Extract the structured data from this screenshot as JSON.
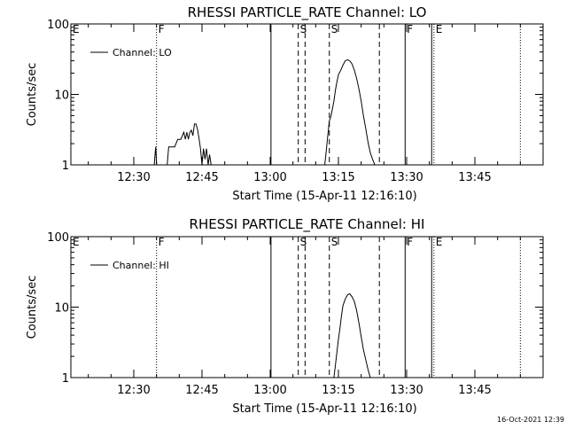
{
  "chart_data": [
    {
      "type": "line",
      "title": "RHESSI PARTICLE_RATE Channel: LO",
      "ylabel": "Counts/sec",
      "xlabel": "Start Time (15-Apr-11 12:16:10)",
      "yscale": "log",
      "ylim": [
        1,
        100
      ],
      "yticks": [
        "1",
        "10",
        "100"
      ],
      "xlim": [
        "12:16:10",
        "14:00:00"
      ],
      "xticks": [
        "12:30",
        "12:45",
        "13:00",
        "13:15",
        "13:30",
        "13:45"
      ],
      "legend": {
        "placement": "top-left",
        "entries": [
          "Channel: LO"
        ]
      },
      "markers": [
        {
          "label": "E",
          "time": "12:16:10",
          "style": "none"
        },
        {
          "label": "F",
          "time": "12:35:00",
          "style": "dotted"
        },
        {
          "label": "",
          "time": "13:00:10",
          "style": "solid"
        },
        {
          "label": "S",
          "time": "13:06:10",
          "style": "dashed"
        },
        {
          "label": "",
          "time": "13:07:40",
          "style": "dashed"
        },
        {
          "label": "S",
          "time": "13:13:00",
          "style": "dashed"
        },
        {
          "label": "",
          "time": "13:24:00",
          "style": "dashed"
        },
        {
          "label": "F",
          "time": "13:29:40",
          "style": "solid"
        },
        {
          "label": "",
          "time": "13:35:30",
          "style": "solid"
        },
        {
          "label": "E",
          "time": "13:36:00",
          "style": "dotted"
        },
        {
          "label": "",
          "time": "13:55:00",
          "style": "dotted"
        }
      ],
      "series": [
        {
          "segments": [
            {
              "x": [
                "12:34:30",
                "12:34:40",
                "12:34:50",
                "12:35:00"
              ],
              "y": [
                1.0,
                1.4,
                1.8,
                1.0
              ]
            },
            {
              "x": [
                "12:37:20",
                "12:37:40",
                "12:38:00",
                "12:38:20",
                "12:39:00",
                "12:39:40",
                "12:40:20",
                "12:41:00",
                "12:41:20",
                "12:41:40",
                "12:42:00",
                "12:42:20",
                "12:42:40",
                "12:43:00",
                "12:43:20",
                "12:43:40",
                "12:44:00",
                "12:44:20",
                "12:44:40",
                "12:45:00",
                "12:45:20",
                "12:45:40",
                "12:46:00",
                "12:46:20",
                "12:46:40",
                "12:47:00"
              ],
              "y": [
                1.0,
                1.8,
                1.8,
                1.8,
                1.8,
                2.3,
                2.3,
                2.9,
                2.3,
                2.9,
                2.3,
                2.9,
                3.1,
                2.6,
                3.8,
                3.8,
                3.2,
                2.4,
                1.7,
                1.0,
                1.7,
                1.2,
                1.7,
                1.0,
                1.4,
                1.0
              ]
            },
            {
              "x": [
                "13:12:00",
                "13:12:20",
                "13:12:40",
                "13:13:00",
                "13:13:20",
                "13:13:40",
                "13:14:00",
                "13:14:20",
                "13:14:40",
                "13:15:00",
                "13:15:30",
                "13:16:00",
                "13:16:30",
                "13:17:00",
                "13:17:30",
                "13:18:00",
                "13:18:30",
                "13:19:00",
                "13:19:30",
                "13:20:00",
                "13:20:30",
                "13:21:00",
                "13:21:30",
                "13:22:00",
                "13:22:30",
                "13:23:00"
              ],
              "y": [
                1.0,
                1.6,
                2.6,
                4.2,
                4.8,
                6.2,
                8.0,
                11.5,
                15.0,
                19.0,
                22.0,
                26.0,
                30.0,
                31.0,
                30.0,
                27.0,
                22.0,
                17.0,
                12.0,
                8.0,
                5.0,
                3.3,
                2.1,
                1.5,
                1.2,
                1.0
              ]
            }
          ]
        }
      ]
    },
    {
      "type": "line",
      "title": "RHESSI PARTICLE_RATE Channel: HI",
      "ylabel": "Counts/sec",
      "xlabel": "Start Time (15-Apr-11 12:16:10)",
      "yscale": "log",
      "ylim": [
        1,
        100
      ],
      "yticks": [
        "1",
        "10",
        "100"
      ],
      "xlim": [
        "12:16:10",
        "14:00:00"
      ],
      "xticks": [
        "12:30",
        "12:45",
        "13:00",
        "13:15",
        "13:30",
        "13:45"
      ],
      "legend": {
        "placement": "top-left",
        "entries": [
          "Channel: HI"
        ]
      },
      "markers": [
        {
          "label": "E",
          "time": "12:16:10",
          "style": "none"
        },
        {
          "label": "F",
          "time": "12:35:00",
          "style": "dotted"
        },
        {
          "label": "",
          "time": "13:00:10",
          "style": "solid"
        },
        {
          "label": "S",
          "time": "13:06:10",
          "style": "dashed"
        },
        {
          "label": "",
          "time": "13:07:40",
          "style": "dashed"
        },
        {
          "label": "S",
          "time": "13:13:00",
          "style": "dashed"
        },
        {
          "label": "",
          "time": "13:24:00",
          "style": "dashed"
        },
        {
          "label": "F",
          "time": "13:29:40",
          "style": "solid"
        },
        {
          "label": "",
          "time": "13:35:30",
          "style": "solid"
        },
        {
          "label": "E",
          "time": "13:36:00",
          "style": "dotted"
        },
        {
          "label": "",
          "time": "13:55:00",
          "style": "dotted"
        }
      ],
      "series": [
        {
          "segments": [
            {
              "x": [
                "13:14:00",
                "13:14:20",
                "13:14:40",
                "13:15:00",
                "13:15:20",
                "13:15:40",
                "13:16:00",
                "13:16:30",
                "13:17:00",
                "13:17:30",
                "13:18:00",
                "13:18:30",
                "13:19:00",
                "13:19:30",
                "13:20:00",
                "13:20:30",
                "13:21:00",
                "13:21:30",
                "13:22:00"
              ],
              "y": [
                1.0,
                1.5,
                2.3,
                3.5,
                5.0,
                7.5,
                10.5,
                13.0,
                15.0,
                15.5,
                14.0,
                12.0,
                9.0,
                6.0,
                3.8,
                2.5,
                1.8,
                1.3,
                1.0
              ]
            }
          ]
        }
      ]
    }
  ],
  "timestamp": "16-Oct-2021 12:39"
}
